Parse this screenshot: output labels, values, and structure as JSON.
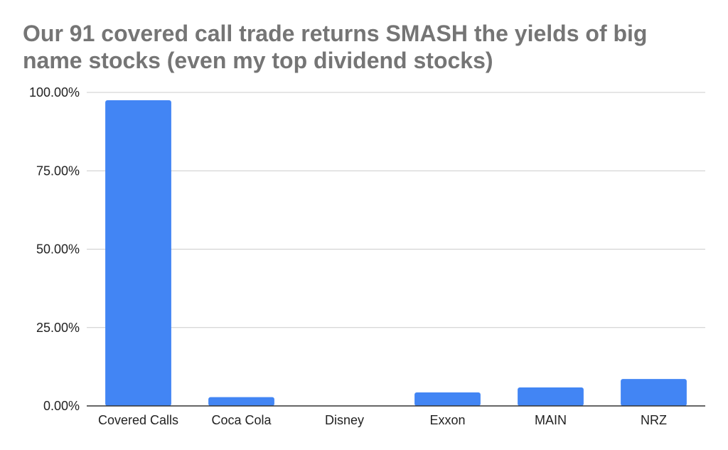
{
  "chart_data": {
    "type": "bar",
    "title": "Our 91 covered call trade returns SMASH the yields of big name stocks (even my top dividend stocks)",
    "xlabel": "",
    "ylabel": "",
    "categories": [
      "Covered Calls",
      "Coca Cola",
      "Disney",
      "Exxon",
      "MAIN",
      "NRZ"
    ],
    "values": [
      97.5,
      2.8,
      0.0,
      4.3,
      5.9,
      8.6
    ],
    "value_format": "percent",
    "ylim": [
      0,
      100
    ],
    "y_ticks": [
      0,
      25,
      50,
      75,
      100
    ],
    "y_tick_labels": [
      "0.00%",
      "25.00%",
      "50.00%",
      "75.00%",
      "100.00%"
    ],
    "grid": true,
    "legend": "none",
    "colors": {
      "bar": "#4285f4",
      "grid": "#cccccc",
      "axis": "#333333",
      "title": "#757575",
      "text": "#222222"
    }
  }
}
